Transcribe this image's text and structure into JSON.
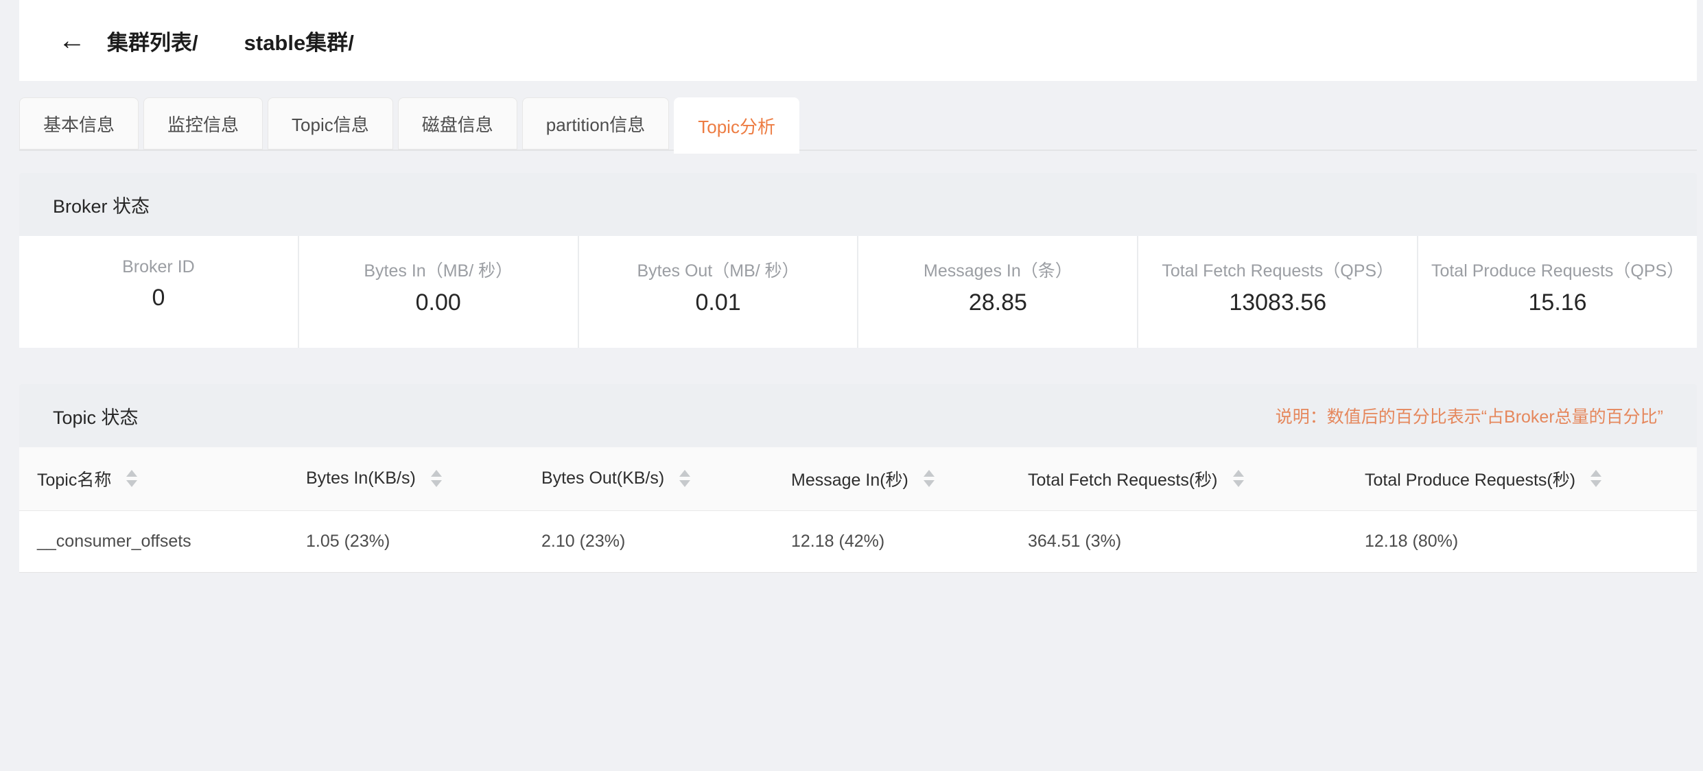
{
  "accent": {
    "tab_active_color": "#ED7C42",
    "note_color": "#E5875C"
  },
  "header": {
    "back_icon": "←",
    "breadcrumb": [
      {
        "label": "集群列表/"
      },
      {
        "label": "stable集群/"
      }
    ]
  },
  "tabs": [
    {
      "label": "基本信息",
      "active": false
    },
    {
      "label": "监控信息",
      "active": false
    },
    {
      "label": "Topic信息",
      "active": false
    },
    {
      "label": "磁盘信息",
      "active": false
    },
    {
      "label": "partition信息",
      "active": false
    },
    {
      "label": "Topic分析",
      "active": true
    }
  ],
  "broker_section": {
    "title": "Broker 状态",
    "stats": [
      {
        "label": "Broker ID",
        "value": "0"
      },
      {
        "label": "Bytes In（MB/ 秒）",
        "value": "0.00"
      },
      {
        "label": "Bytes Out（MB/ 秒）",
        "value": "0.01"
      },
      {
        "label": "Messages In（条）",
        "value": "28.85"
      },
      {
        "label": "Total Fetch Requests（QPS）",
        "value": "13083.56"
      },
      {
        "label": "Total Produce Requests（QPS）",
        "value": "15.16"
      }
    ]
  },
  "topic_section": {
    "title": "Topic 状态",
    "note": "说明：数值后的百分比表示“占Broker总量的百分比”",
    "table": {
      "columns": [
        "Topic名称",
        "Bytes In(KB/s)",
        "Bytes Out(KB/s)",
        "Message In(秒)",
        "Total Fetch Requests(秒)",
        "Total Produce Requests(秒)"
      ],
      "rows": [
        [
          "__consumer_offsets",
          "1.05 (23%)",
          "2.10 (23%)",
          "12.18 (42%)",
          "364.51 (3%)",
          "12.18 (80%)"
        ]
      ]
    }
  }
}
